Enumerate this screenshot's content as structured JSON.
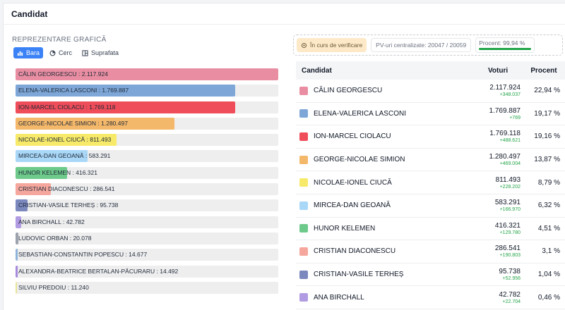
{
  "header": {
    "title": "Candidat"
  },
  "chart_section": {
    "title": "REPREZENTARE GRAFICĂ",
    "tabs": [
      {
        "label": "Bara",
        "icon": "bar-chart-icon",
        "active": true
      },
      {
        "label": "Cerc",
        "icon": "pie-chart-icon",
        "active": false
      },
      {
        "label": "Suprafata",
        "icon": "treemap-icon",
        "active": false
      }
    ]
  },
  "status": {
    "verification_label": "În curs de verificare",
    "pv_label": "PV-uri centralizate: 20047 / 20059",
    "percent_label": "Procent: 99,94 %",
    "percent_value": 99.94
  },
  "table": {
    "headers": {
      "candidate": "Candidat",
      "votes": "Voturi",
      "percent": "Procent"
    },
    "rows": [
      {
        "name": "CĂLIN GEORGESCU",
        "votes": "2.117.924",
        "delta": "+348.037",
        "percent": "22,94 %",
        "color": "#e98ea2"
      },
      {
        "name": "ELENA-VALERICA LASCONI",
        "votes": "1.769.887",
        "delta": "+769",
        "percent": "19,17 %",
        "color": "#7ea7d8"
      },
      {
        "name": "ION-MARCEL CIOLACU",
        "votes": "1.769.118",
        "delta": "+488.621",
        "percent": "19,16 %",
        "color": "#ef4d5a"
      },
      {
        "name": "GEORGE-NICOLAE SIMION",
        "votes": "1.280.497",
        "delta": "+469.004",
        "percent": "13,87 %",
        "color": "#f4b86a"
      },
      {
        "name": "NICOLAE-IONEL CIUCĂ",
        "votes": "811.493",
        "delta": "+228.202",
        "percent": "8,79 %",
        "color": "#f7ea6a"
      },
      {
        "name": "MIRCEA-DAN GEOANĂ",
        "votes": "583.291",
        "delta": "+166.970",
        "percent": "6,32 %",
        "color": "#a9d7f7"
      },
      {
        "name": "HUNOR KELEMEN",
        "votes": "416.321",
        "delta": "+129.780",
        "percent": "4,51 %",
        "color": "#6dca8b"
      },
      {
        "name": "CRISTIAN DIACONESCU",
        "votes": "286.541",
        "delta": "+190.803",
        "percent": "3,1 %",
        "color": "#f5a79d"
      },
      {
        "name": "CRISTIAN-VASILE TERHEȘ",
        "votes": "95.738",
        "delta": "+52.956",
        "percent": "1,04 %",
        "color": "#7b88bd"
      },
      {
        "name": "ANA BIRCHALL",
        "votes": "42.782",
        "delta": "+22.704",
        "percent": "0,46 %",
        "color": "#b19be3"
      }
    ]
  },
  "chart_data": {
    "type": "bar",
    "orientation": "horizontal",
    "title": "",
    "categories": [
      "CĂLIN GEORGESCU",
      "ELENA-VALERICA LASCONI",
      "ION-MARCEL CIOLACU",
      "GEORGE-NICOLAE SIMION",
      "NICOLAE-IONEL CIUCĂ",
      "MIRCEA-DAN GEOANĂ",
      "HUNOR KELEMEN",
      "CRISTIAN DIACONESCU",
      "CRISTIAN-VASILE TERHEȘ",
      "ANA BIRCHALL",
      "LUDOVIC ORBAN",
      "SEBASTIAN-CONSTANTIN POPESCU",
      "ALEXANDRA-BEATRICE BERTALAN-PĂCURARU",
      "SILVIU PREDOIU"
    ],
    "values": [
      2117924,
      1769887,
      1769118,
      1280497,
      811493,
      583291,
      416321,
      286541,
      95738,
      42782,
      20078,
      14677,
      14492,
      11240
    ],
    "labels": [
      "CĂLIN GEORGESCU : 2.117.924",
      "ELENA-VALERICA LASCONI : 1.769.887",
      "ION-MARCEL CIOLACU : 1.769.118",
      "GEORGE-NICOLAE SIMION : 1.280.497",
      "NICOLAE-IONEL CIUCĂ : 811.493",
      "MIRCEA-DAN GEOANĂ : 583.291",
      "HUNOR KELEMEN : 416.321",
      "CRISTIAN DIACONESCU : 286.541",
      "CRISTIAN-VASILE TERHEȘ : 95.738",
      "ANA BIRCHALL : 42.782",
      "LUDOVIC ORBAN : 20.078",
      "SEBASTIAN-CONSTANTIN POPESCU : 14.677",
      "ALEXANDRA-BEATRICE BERTALAN-PĂCURARU : 14.492",
      "SILVIU PREDOIU : 11.240"
    ],
    "colors": [
      "#e98ea2",
      "#7ea7d8",
      "#ef4d5a",
      "#f4b86a",
      "#f7ea6a",
      "#a9d7f7",
      "#6dca8b",
      "#f5a79d",
      "#7b88bd",
      "#b19be3",
      "#9ca3af",
      "#8fb4d9",
      "#a78bdc",
      "#e8e59a"
    ],
    "xlim": [
      0,
      2117924
    ],
    "grid": false,
    "legend": "none"
  }
}
